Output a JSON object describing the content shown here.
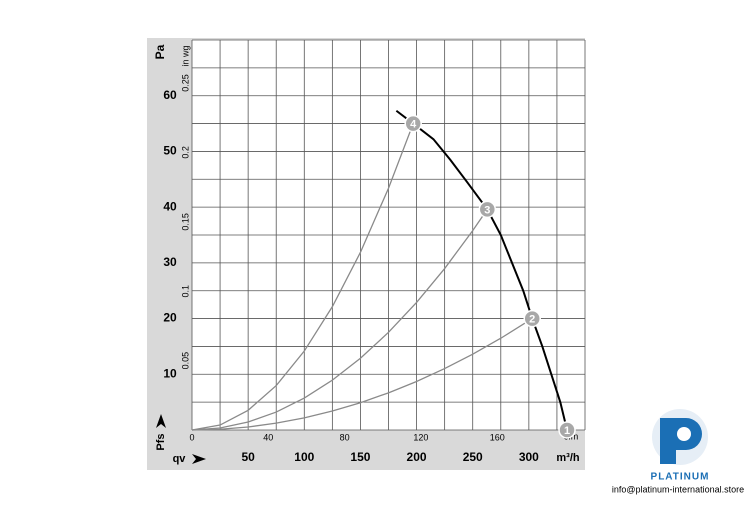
{
  "chart_data": {
    "type": "line",
    "y_unit_label": "Pa",
    "y_axis_label": "Pfs",
    "y2_unit_label": "in wg",
    "x_axis_label": "qv",
    "x_unit_label": "m³/h",
    "x2_unit_label": "cfm",
    "xlim": [
      0,
      350
    ],
    "xticks": [
      50,
      100,
      150,
      200,
      250,
      300
    ],
    "x2lim": [
      0,
      206
    ],
    "x2ticks": [
      0,
      40,
      80,
      120,
      160
    ],
    "ylim": [
      0,
      70
    ],
    "yticks": [
      10,
      20,
      30,
      40,
      50,
      60
    ],
    "y2lim": [
      0,
      0.281
    ],
    "y2ticks": [
      0.05,
      0.1,
      0.15,
      0.2,
      0.25
    ],
    "xgrid": [
      0,
      25,
      50,
      75,
      100,
      125,
      150,
      175,
      200,
      225,
      250,
      275,
      300,
      325,
      350
    ],
    "ygrid": [
      0,
      5,
      10,
      15,
      20,
      25,
      30,
      35,
      40,
      45,
      50,
      55,
      60,
      65,
      70
    ],
    "grid": true,
    "series": [
      {
        "color": "#000000",
        "x": [
          182,
          197,
          215,
          230,
          245,
          263,
          275,
          285,
          295,
          303,
          312,
          320,
          328,
          334
        ],
        "values": [
          57.3,
          55,
          52.2,
          48.5,
          44.5,
          39.6,
          35,
          30,
          25,
          20,
          15,
          10,
          5,
          0
        ]
      },
      {
        "color": "#8a8a8a",
        "x": [
          0,
          25,
          50,
          75,
          100,
          125,
          150,
          175,
          197
        ],
        "values": [
          0,
          0.89,
          3.54,
          7.97,
          14.17,
          22.14,
          31.89,
          43.4,
          55
        ]
      },
      {
        "color": "#8a8a8a",
        "x": [
          0,
          25,
          50,
          75,
          100,
          125,
          150,
          175,
          200,
          225,
          250,
          263
        ],
        "values": [
          0,
          0.36,
          1.43,
          3.22,
          5.73,
          8.95,
          12.88,
          17.53,
          22.9,
          28.98,
          35.78,
          39.6
        ]
      },
      {
        "color": "#8a8a8a",
        "x": [
          0,
          25,
          50,
          75,
          100,
          125,
          150,
          175,
          200,
          225,
          250,
          275,
          303
        ],
        "values": [
          0,
          0.14,
          0.54,
          1.23,
          2.18,
          3.4,
          4.9,
          6.67,
          8.71,
          11.03,
          13.61,
          16.47,
          20
        ]
      }
    ],
    "operating_points": [
      {
        "label": "1",
        "x": 334,
        "y": 0
      },
      {
        "label": "2",
        "x": 303,
        "y": 20
      },
      {
        "label": "3",
        "x": 263,
        "y": 39.6
      },
      {
        "label": "4",
        "x": 197,
        "y": 55
      }
    ]
  },
  "branding": {
    "name": "PLATINUM",
    "email": "info@platinum-international.store"
  }
}
